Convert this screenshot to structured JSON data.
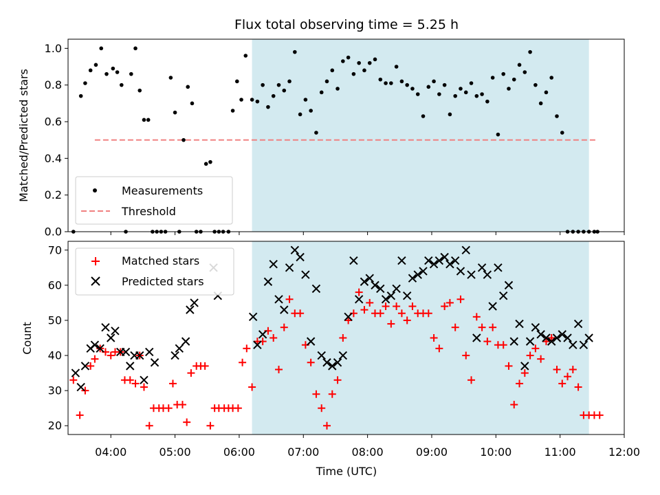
{
  "chart_data": [
    {
      "type": "scatter",
      "title": "Flux total observing time = 5.25 h",
      "ylabel": "Matched/Predicted stars",
      "xlim": [
        "03:20",
        "12:00"
      ],
      "ylim": [
        0,
        1.05
      ],
      "yticks": [
        0.0,
        0.2,
        0.4,
        0.6,
        0.8,
        1.0
      ],
      "ytick_labels": [
        "0.0",
        "0.2",
        "0.4",
        "0.6",
        "0.8",
        "1.0"
      ],
      "grid": false,
      "shaded_interval": {
        "x": [
          "06:12",
          "11:27"
        ],
        "color": "#d3eaf0"
      },
      "threshold": {
        "name": "Threshold",
        "y": 0.5,
        "x": [
          "03:45",
          "11:35"
        ],
        "color": "#f08080",
        "style": "dashed"
      },
      "legend": {
        "position": "lower-left",
        "entries": [
          "Measurements",
          "Threshold"
        ]
      },
      "series": [
        {
          "name": "Measurements",
          "color": "#000000",
          "marker": "dot",
          "x": [
            "03:25",
            "03:32",
            "03:36",
            "03:41",
            "03:46",
            "03:51",
            "03:56",
            "04:02",
            "04:06",
            "04:10",
            "04:14",
            "04:19",
            "04:23",
            "04:27",
            "04:31",
            "04:35",
            "04:39",
            "04:43",
            "04:47",
            "04:51",
            "04:56",
            "05:00",
            "05:04",
            "05:08",
            "05:12",
            "05:16",
            "05:20",
            "05:24",
            "05:29",
            "05:33",
            "05:37",
            "05:41",
            "05:45",
            "05:50",
            "05:54",
            "05:58",
            "06:02",
            "06:06",
            "06:12",
            "06:17",
            "06:22",
            "06:27",
            "06:32",
            "06:37",
            "06:42",
            "06:47",
            "06:52",
            "06:57",
            "07:02",
            "07:07",
            "07:12",
            "07:17",
            "07:22",
            "07:27",
            "07:32",
            "07:37",
            "07:42",
            "07:47",
            "07:52",
            "07:57",
            "08:02",
            "08:07",
            "08:12",
            "08:17",
            "08:22",
            "08:27",
            "08:32",
            "08:37",
            "08:42",
            "08:47",
            "08:52",
            "08:57",
            "09:02",
            "09:07",
            "09:12",
            "09:17",
            "09:22",
            "09:27",
            "09:32",
            "09:37",
            "09:42",
            "09:47",
            "09:52",
            "09:57",
            "10:02",
            "10:07",
            "10:12",
            "10:17",
            "10:22",
            "10:27",
            "10:32",
            "10:37",
            "10:42",
            "10:47",
            "10:52",
            "10:57",
            "11:02",
            "11:07",
            "11:12",
            "11:17",
            "11:22",
            "11:27",
            "11:32",
            "11:35"
          ],
          "y": [
            0.0,
            0.74,
            0.81,
            0.88,
            0.91,
            1.0,
            0.86,
            0.89,
            0.87,
            0.8,
            0.0,
            0.86,
            1.0,
            0.77,
            0.61,
            0.61,
            0.0,
            0.0,
            0.0,
            0.0,
            0.84,
            0.65,
            0.0,
            0.5,
            0.79,
            0.7,
            0.0,
            0.0,
            0.37,
            0.38,
            0.0,
            0.0,
            0.0,
            0.0,
            0.66,
            0.82,
            0.72,
            0.96,
            0.72,
            0.71,
            0.8,
            0.68,
            0.74,
            0.8,
            0.77,
            0.82,
            0.98,
            0.64,
            0.72,
            0.66,
            0.54,
            0.76,
            0.82,
            0.88,
            0.78,
            0.93,
            0.95,
            0.86,
            0.92,
            0.88,
            0.92,
            0.94,
            0.83,
            0.81,
            0.81,
            0.9,
            0.82,
            0.8,
            0.78,
            0.75,
            0.63,
            0.79,
            0.82,
            0.75,
            0.8,
            0.64,
            0.74,
            0.78,
            0.76,
            0.81,
            0.74,
            0.75,
            0.71,
            0.84,
            0.53,
            0.86,
            0.78,
            0.83,
            0.91,
            0.87,
            0.98,
            0.8,
            0.7,
            0.76,
            0.84,
            0.63,
            0.54,
            0.0,
            0.0,
            0.0,
            0.0,
            0.0,
            0.0,
            0.0
          ]
        }
      ]
    },
    {
      "type": "scatter",
      "xlabel": "Time (UTC)",
      "ylabel": "Count",
      "xlim": [
        "03:20",
        "12:00"
      ],
      "ylim": [
        17.5,
        72.5
      ],
      "xticks": [
        "04:00",
        "05:00",
        "06:00",
        "07:00",
        "08:00",
        "09:00",
        "10:00",
        "11:00",
        "12:00"
      ],
      "xtick_labels": [
        "04:00",
        "05:00",
        "06:00",
        "07:00",
        "08:00",
        "09:00",
        "10:00",
        "11:00",
        "12:00"
      ],
      "yticks": [
        20,
        30,
        40,
        50,
        60,
        70
      ],
      "ytick_labels": [
        "20",
        "30",
        "40",
        "50",
        "60",
        "70"
      ],
      "grid": false,
      "shaded_interval": {
        "x": [
          "06:12",
          "11:27"
        ],
        "color": "#d3eaf0"
      },
      "legend": {
        "position": "upper-left",
        "entries": [
          "Matched stars",
          "Predicted stars"
        ]
      },
      "series": [
        {
          "name": "Matched stars",
          "color": "#ff0000",
          "marker": "plus",
          "x": [
            "03:25",
            "03:31",
            "03:36",
            "03:41",
            "03:45",
            "03:50",
            "03:55",
            "04:00",
            "04:04",
            "04:09",
            "04:13",
            "04:18",
            "04:23",
            "04:27",
            "04:31",
            "04:36",
            "04:40",
            "04:45",
            "04:49",
            "04:54",
            "04:58",
            "05:02",
            "05:07",
            "05:11",
            "05:15",
            "05:20",
            "05:24",
            "05:28",
            "05:33",
            "05:37",
            "05:41",
            "05:46",
            "05:50",
            "05:54",
            "05:59",
            "06:03",
            "06:07",
            "06:12",
            "06:17",
            "06:22",
            "06:27",
            "06:32",
            "06:37",
            "06:42",
            "06:47",
            "06:52",
            "06:57",
            "07:02",
            "07:07",
            "07:12",
            "07:17",
            "07:22",
            "07:27",
            "07:32",
            "07:37",
            "07:42",
            "07:47",
            "07:52",
            "07:57",
            "08:02",
            "08:07",
            "08:12",
            "08:17",
            "08:22",
            "08:27",
            "08:32",
            "08:37",
            "08:42",
            "08:47",
            "08:52",
            "08:57",
            "09:02",
            "09:07",
            "09:12",
            "09:17",
            "09:22",
            "09:27",
            "09:32",
            "09:37",
            "09:42",
            "09:47",
            "09:52",
            "09:57",
            "10:02",
            "10:07",
            "10:12",
            "10:17",
            "10:22",
            "10:27",
            "10:32",
            "10:37",
            "10:42",
            "10:47",
            "10:52",
            "10:57",
            "11:02",
            "11:07",
            "11:12",
            "11:17",
            "11:22",
            "11:27",
            "11:32",
            "11:37"
          ],
          "y": [
            33,
            23,
            30,
            37,
            39,
            42,
            41,
            40,
            41,
            41,
            33,
            33,
            32,
            40,
            31,
            20,
            25,
            25,
            25,
            25,
            32,
            26,
            26,
            21,
            35,
            37,
            37,
            37,
            20,
            25,
            25,
            25,
            25,
            25,
            25,
            38,
            42,
            31,
            44,
            44,
            47,
            45,
            36,
            48,
            56,
            52,
            52,
            43,
            38,
            29,
            25,
            20,
            29,
            33,
            45,
            50,
            52,
            58,
            53,
            55,
            52,
            52,
            54,
            49,
            54,
            52,
            50,
            54,
            52,
            52,
            52,
            45,
            42,
            54,
            55,
            48,
            56,
            40,
            33,
            51,
            48,
            44,
            48,
            43,
            43,
            37,
            26,
            32,
            35,
            40,
            42,
            39,
            44,
            45,
            36,
            32,
            34,
            36,
            31,
            23,
            23,
            23,
            23
          ]
        },
        {
          "name": "Predicted stars",
          "color": "#000000",
          "marker": "x",
          "x": [
            "03:27",
            "03:32",
            "03:36",
            "03:41",
            "03:45",
            "03:50",
            "03:55",
            "04:00",
            "04:04",
            "04:09",
            "04:14",
            "04:18",
            "04:22",
            "04:27",
            "04:31",
            "04:36",
            "04:41",
            "05:00",
            "05:04",
            "05:10",
            "05:14",
            "05:18",
            "05:36",
            "05:40",
            "06:13",
            "06:17",
            "06:22",
            "06:27",
            "06:32",
            "06:37",
            "06:42",
            "06:47",
            "06:52",
            "06:57",
            "07:02",
            "07:07",
            "07:12",
            "07:17",
            "07:22",
            "07:27",
            "07:32",
            "07:37",
            "07:42",
            "07:47",
            "07:52",
            "07:57",
            "08:02",
            "08:07",
            "08:12",
            "08:17",
            "08:22",
            "08:27",
            "08:32",
            "08:37",
            "08:42",
            "08:47",
            "08:52",
            "08:57",
            "09:02",
            "09:07",
            "09:12",
            "09:17",
            "09:22",
            "09:27",
            "09:32",
            "09:37",
            "09:42",
            "09:47",
            "09:52",
            "09:57",
            "10:02",
            "10:07",
            "10:12",
            "10:17",
            "10:22",
            "10:27",
            "10:32",
            "10:37",
            "10:42",
            "10:47",
            "10:52",
            "10:57",
            "11:02",
            "11:07",
            "11:12",
            "11:17",
            "11:22",
            "11:27"
          ],
          "y": [
            35,
            31,
            37,
            42,
            43,
            42,
            48,
            45,
            47,
            41,
            41,
            37,
            40,
            40,
            33,
            41,
            38,
            40,
            42,
            44,
            53,
            55,
            65,
            57,
            51,
            43,
            46,
            61,
            66,
            56,
            53,
            65,
            70,
            68,
            63,
            44,
            59,
            40,
            38,
            37,
            38,
            40,
            51,
            67,
            56,
            61,
            62,
            60,
            59,
            56,
            57,
            59,
            67,
            57,
            62,
            63,
            64,
            67,
            66,
            67,
            68,
            66,
            67,
            64,
            70,
            63,
            45,
            65,
            63,
            54,
            65,
            57,
            60,
            44,
            49,
            37,
            44,
            48,
            46,
            45,
            44,
            45,
            46,
            45,
            43,
            49,
            43,
            45
          ]
        }
      ]
    }
  ]
}
